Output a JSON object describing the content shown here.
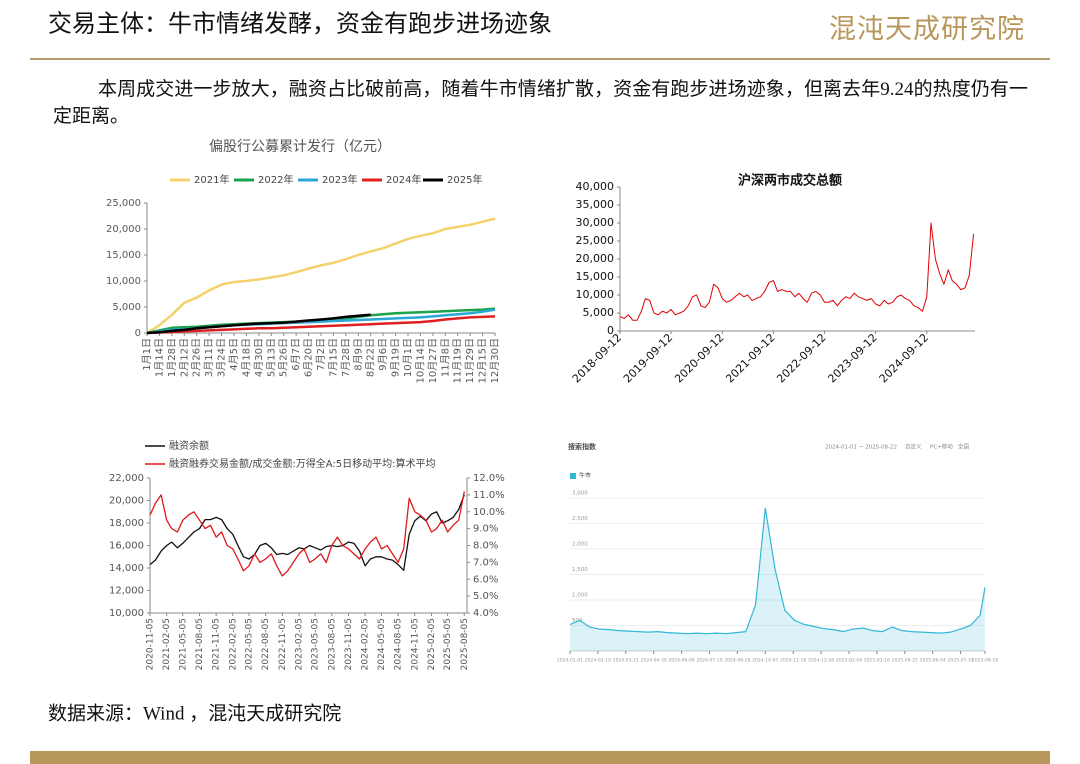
{
  "header": {
    "title": "交易主体：牛市情绪发酵，资金有跑步进场迹象",
    "logo": "混沌天成研究院"
  },
  "body_text": "本周成交进一步放大，融资占比破前高，随着牛市情绪扩散，资金有跑步进场迹象，但离去年9.24的热度仍有一定距离。",
  "source": "数据来源：Wind ，混沌天成研究院",
  "chart_data": [
    {
      "type": "line",
      "title": "偏股行公募累计发行（亿元）",
      "grid": false,
      "legend": true,
      "categories": [
        "1月1日",
        "1月14日",
        "1月28日",
        "2月12日",
        "2月26日",
        "3月11日",
        "3月24日",
        "4月5日",
        "4月18日",
        "4月30日",
        "5月13日",
        "5月26日",
        "6月7日",
        "6月20日",
        "7月2日",
        "7月15日",
        "7月28日",
        "8月9日",
        "8月22日",
        "9月6日",
        "9月19日",
        "10月1日",
        "10月14日",
        "10月27日",
        "11月8日",
        "11月19日",
        "11月29日",
        "12月15日",
        "12月30日"
      ],
      "ylim": [
        0,
        25000
      ],
      "yticks": [
        0,
        {
          "value": 5000,
          "label": "5,000"
        },
        {
          "value": 10000,
          "label": "10,000"
        },
        {
          "value": 15000,
          "label": "15,000"
        },
        {
          "value": 20000,
          "label": "20,000"
        },
        {
          "value": 25000,
          "label": "25,000"
        }
      ],
      "series": [
        {
          "name": "2021年",
          "color": "#f5d16b",
          "values": [
            0,
            1500,
            3500,
            5800,
            6800,
            8200,
            9300,
            9800,
            10000,
            10300,
            10700,
            11100,
            11700,
            12400,
            13000,
            13500,
            14200,
            15000,
            15700,
            16300,
            17200,
            18100,
            18700,
            19200,
            20000,
            20400,
            20800,
            21400,
            22000
          ]
        },
        {
          "name": "2022年",
          "color": "#1aa34a",
          "values": [
            0,
            500,
            1000,
            1100,
            1200,
            1400,
            1600,
            1700,
            1800,
            1900,
            2000,
            2100,
            2200,
            2400,
            2500,
            2600,
            2800,
            3100,
            3400,
            3600,
            3800,
            3900,
            4000,
            4100,
            4200,
            4300,
            4400,
            4500,
            4700
          ]
        },
        {
          "name": "2023年",
          "color": "#2aa7d6",
          "values": [
            0,
            300,
            600,
            700,
            900,
            1100,
            1300,
            1500,
            1600,
            1700,
            1800,
            1900,
            2000,
            2100,
            2200,
            2300,
            2400,
            2500,
            2600,
            2700,
            2800,
            2900,
            3000,
            3200,
            3400,
            3600,
            3800,
            4100,
            4500
          ]
        },
        {
          "name": "2024年",
          "color": "#e02020",
          "values": [
            0,
            100,
            200,
            300,
            400,
            500,
            600,
            700,
            800,
            900,
            900,
            1000,
            1100,
            1200,
            1300,
            1400,
            1500,
            1600,
            1700,
            1800,
            1900,
            2000,
            2100,
            2300,
            2600,
            2800,
            3000,
            3100,
            3200
          ]
        },
        {
          "name": "2025年",
          "color": "#000000",
          "values": [
            0,
            150,
            400,
            600,
            900,
            1100,
            1300,
            1500,
            1700,
            1800,
            1900,
            2000,
            2200,
            2400,
            2600,
            2800,
            3100,
            3300,
            3500,
            null,
            null,
            null,
            null,
            null,
            null,
            null,
            null,
            null,
            null
          ]
        }
      ]
    },
    {
      "type": "line",
      "title": "沪深两市成交总额",
      "grid": false,
      "legend": false,
      "x": [
        "2018-09-12",
        "2018-10-12",
        "2018-11-12",
        "2018-12-12",
        "2019-01-12",
        "2019-02-12",
        "2019-03-12",
        "2019-04-12",
        "2019-05-12",
        "2019-06-12",
        "2019-07-12",
        "2019-08-12",
        "2019-09-12",
        "2019-10-12",
        "2019-11-12",
        "2019-12-12",
        "2020-01-12",
        "2020-02-12",
        "2020-03-12",
        "2020-04-12",
        "2020-05-12",
        "2020-06-12",
        "2020-07-12",
        "2020-08-12",
        "2020-09-12",
        "2020-10-12",
        "2020-11-12",
        "2020-12-12",
        "2021-01-12",
        "2021-02-12",
        "2021-03-12",
        "2021-04-12",
        "2021-05-12",
        "2021-06-12",
        "2021-07-12",
        "2021-08-12",
        "2021-09-12",
        "2021-10-12",
        "2021-11-12",
        "2021-12-12",
        "2022-01-12",
        "2022-02-12",
        "2022-03-12",
        "2022-04-12",
        "2022-05-12",
        "2022-06-12",
        "2022-07-12",
        "2022-08-12",
        "2022-09-12",
        "2022-10-12",
        "2022-11-12",
        "2022-12-12",
        "2023-01-12",
        "2023-02-12",
        "2023-03-12",
        "2023-04-12",
        "2023-05-12",
        "2023-06-12",
        "2023-07-12",
        "2023-08-12",
        "2023-09-12",
        "2023-10-12",
        "2023-11-12",
        "2023-12-12",
        "2024-01-12",
        "2024-02-12",
        "2024-03-12",
        "2024-04-12",
        "2024-05-12",
        "2024-06-12",
        "2024-07-12",
        "2024-08-12",
        "2024-09-12",
        "2024-10-12",
        "2024-11-12",
        "2024-12-12",
        "2025-01-12",
        "2025-02-12",
        "2025-03-12",
        "2025-04-12",
        "2025-05-12",
        "2025-06-12",
        "2025-07-12",
        "2025-08-12"
      ],
      "xlim": [
        "2018-09-12",
        "2025-08-22"
      ],
      "xticks": [
        "2018-09-12",
        "2019-09-12",
        "2020-09-12",
        "2021-09-12",
        "2022-09-12",
        "2023-09-12",
        "2024-09-12"
      ],
      "ylim": [
        0,
        40000
      ],
      "yticks": [
        0,
        {
          "value": 5000,
          "label": "5,000"
        },
        {
          "value": 10000,
          "label": "10,000"
        },
        {
          "value": 15000,
          "label": "15,000"
        },
        {
          "value": 20000,
          "label": "20,000"
        },
        {
          "value": 25000,
          "label": "25,000"
        },
        {
          "value": 30000,
          "label": "30,000"
        },
        {
          "value": 35000,
          "label": "35,000"
        },
        {
          "value": 40000,
          "label": "40,000"
        }
      ],
      "series": [
        {
          "name": "沪深两市成交总额",
          "color": "#e00000",
          "values": [
            4000,
            3500,
            4500,
            3000,
            3000,
            5500,
            9000,
            8500,
            5000,
            4500,
            5500,
            5000,
            6000,
            4500,
            5000,
            5500,
            7000,
            9500,
            10000,
            7000,
            6500,
            8000,
            13000,
            12000,
            9000,
            8000,
            8500,
            9500,
            10500,
            9500,
            10000,
            8500,
            9000,
            9500,
            11000,
            13500,
            14000,
            11000,
            11500,
            11000,
            11000,
            9500,
            10500,
            9000,
            8000,
            10500,
            11000,
            10000,
            8000,
            8000,
            8500,
            7000,
            8500,
            9500,
            9000,
            10500,
            9500,
            9000,
            8500,
            9000,
            7500,
            7000,
            8500,
            7500,
            8000,
            9500,
            10000,
            9000,
            8500,
            7000,
            6500,
            5500,
            9500,
            30000,
            20000,
            16000,
            13000,
            17000,
            14000,
            13000,
            11500,
            12000,
            15500,
            27000
          ]
        }
      ]
    },
    {
      "type": "line",
      "grid": false,
      "legend": true,
      "x": [
        "2020-11-05",
        "2020-12-05",
        "2021-01-05",
        "2021-02-05",
        "2021-03-05",
        "2021-04-05",
        "2021-05-05",
        "2021-06-05",
        "2021-07-05",
        "2021-08-05",
        "2021-09-05",
        "2021-10-05",
        "2021-11-05",
        "2021-12-05",
        "2022-01-05",
        "2022-02-05",
        "2022-03-05",
        "2022-04-05",
        "2022-05-05",
        "2022-06-05",
        "2022-07-05",
        "2022-08-05",
        "2022-09-05",
        "2022-10-05",
        "2022-11-05",
        "2022-12-05",
        "2023-01-05",
        "2023-02-05",
        "2023-03-05",
        "2023-04-05",
        "2023-05-05",
        "2023-06-05",
        "2023-07-05",
        "2023-08-05",
        "2023-09-05",
        "2023-10-05",
        "2023-11-05",
        "2023-12-05",
        "2024-01-05",
        "2024-02-05",
        "2024-03-05",
        "2024-04-05",
        "2024-05-05",
        "2024-06-05",
        "2024-07-05",
        "2024-08-05",
        "2024-09-05",
        "2024-10-05",
        "2024-11-05",
        "2024-12-05",
        "2025-01-05",
        "2025-02-05",
        "2025-03-05",
        "2025-04-05",
        "2025-05-05",
        "2025-06-05",
        "2025-07-05",
        "2025-08-05"
      ],
      "xlim": [
        "2020-11-05",
        "2025-08-20"
      ],
      "xticks": [
        "2020-11-05",
        "2021-02-05",
        "2021-05-05",
        "2021-08-05",
        "2021-11-05",
        "2022-02-05",
        "2022-05-05",
        "2022-08-05",
        "2022-11-05",
        "2023-02-05",
        "2023-05-05",
        "2023-08-05",
        "2023-11-05",
        "2024-02-05",
        "2024-05-05",
        "2024-08-05",
        "2024-11-05",
        "2025-02-05",
        "2025-05-05",
        "2025-08-05"
      ],
      "ylim": [
        10000,
        22000
      ],
      "yticks": [
        {
          "value": 10000,
          "label": "10,000"
        },
        {
          "value": 12000,
          "label": "12,000"
        },
        {
          "value": 14000,
          "label": "14,000"
        },
        {
          "value": 16000,
          "label": "16,000"
        },
        {
          "value": 18000,
          "label": "18,000"
        },
        {
          "value": 20000,
          "label": "20,000"
        },
        {
          "value": 22000,
          "label": "22,000"
        }
      ],
      "y2lim": [
        4,
        12
      ],
      "y2ticks": [
        {
          "value": 4,
          "label": "4.0%"
        },
        {
          "value": 5,
          "label": "5.0%"
        },
        {
          "value": 6,
          "label": "6.0%"
        },
        {
          "value": 7,
          "label": "7.0%"
        },
        {
          "value": 8,
          "label": "8.0%"
        },
        {
          "value": 9,
          "label": "9.0%"
        },
        {
          "value": 10,
          "label": "10.0%"
        },
        {
          "value": 11,
          "label": "11.0%"
        },
        {
          "value": 12,
          "label": "12.0%"
        }
      ],
      "series": [
        {
          "name": "融资余额",
          "color": "#111111",
          "values": [
            14300,
            14700,
            15500,
            16000,
            16300,
            15800,
            16200,
            16700,
            17200,
            17500,
            18300,
            18300,
            18500,
            18300,
            17500,
            17000,
            16000,
            15000,
            14800,
            15200,
            16000,
            16200,
            15800,
            15200,
            15300,
            15200,
            15500,
            15800,
            15700,
            16000,
            15800,
            15600,
            15900,
            16000,
            15900,
            16000,
            16300,
            16200,
            15500,
            14200,
            14800,
            15000,
            15000,
            14800,
            14700,
            14300,
            13800,
            17000,
            18200,
            18600,
            18200,
            18800,
            19000,
            18000,
            18200,
            18500,
            19200,
            20500
          ]
        },
        {
          "name": "融资融券交易金额/成交金额:万得全A:5日移动平均:算术平均",
          "color": "#e0191b",
          "axis": "y2",
          "values": [
            9.8,
            10.5,
            11.0,
            9.5,
            9.0,
            8.8,
            9.5,
            9.8,
            10.0,
            9.5,
            9.0,
            9.2,
            8.5,
            8.8,
            8.0,
            7.8,
            7.2,
            6.5,
            6.8,
            7.5,
            7.0,
            7.2,
            7.5,
            6.8,
            6.2,
            6.5,
            7.0,
            7.5,
            7.8,
            7.0,
            7.2,
            7.5,
            7.0,
            8.0,
            8.5,
            8.0,
            7.8,
            7.5,
            7.2,
            7.8,
            8.2,
            8.5,
            7.8,
            8.0,
            7.5,
            7.0,
            7.8,
            10.8,
            10.0,
            9.8,
            9.5,
            8.8,
            9.0,
            9.5,
            8.8,
            9.2,
            9.5,
            11.2
          ]
        }
      ]
    },
    {
      "type": "area",
      "title": "搜索指数",
      "grid": true,
      "legend": true,
      "header_items": [
        "2024-01-01 ~ 2025-08-22",
        "自定义",
        "PC+移动",
        "全国"
      ],
      "x": [
        "2024-01-01",
        "2024-01-15",
        "2024-01-29",
        "2024-02-12",
        "2024-02-26",
        "2024-03-11",
        "2024-03-25",
        "2024-04-08",
        "2024-04-22",
        "2024-05-06",
        "2024-05-20",
        "2024-06-03",
        "2024-06-17",
        "2024-07-01",
        "2024-07-15",
        "2024-07-29",
        "2024-08-12",
        "2024-08-26",
        "2024-09-09",
        "2024-09-23",
        "2024-10-07",
        "2024-10-21",
        "2024-11-04",
        "2024-11-18",
        "2024-12-02",
        "2024-12-16",
        "2024-12-30",
        "2025-01-13",
        "2025-01-27",
        "2025-02-10",
        "2025-02-24",
        "2025-03-10",
        "2025-03-24",
        "2025-04-07",
        "2025-04-21",
        "2025-05-05",
        "2025-05-19",
        "2025-06-02",
        "2025-06-16",
        "2025-06-30",
        "2025-07-14",
        "2025-07-28",
        "2025-08-11",
        "2025-08-18"
      ],
      "xlim": [
        "2024-01-01",
        "2025-08-18"
      ],
      "xticks": [
        "2024-01-01",
        "2024-02-10",
        "2024-03-21",
        "2024-04-30",
        "2024-06-09",
        "2024-07-19",
        "2024-08-28",
        "2024-10-07",
        "2024-11-16",
        "2024-12-26",
        "2025-02-04",
        "2025-03-16",
        "2025-04-25",
        "2025-06-04",
        "2025-07-14",
        "2025-08-18"
      ],
      "ylim": [
        0,
        3000
      ],
      "yticks": [
        {
          "value": 500,
          "label": "500"
        },
        {
          "value": 1000,
          "label": "1,000"
        },
        {
          "value": 1500,
          "label": "1,500"
        },
        {
          "value": 2000,
          "label": "2,000"
        },
        {
          "value": 2500,
          "label": "2,500"
        },
        {
          "value": 3000,
          "label": "3,000"
        }
      ],
      "series": [
        {
          "name": "牛市",
          "color": "#34b6d7",
          "values": [
            520,
            600,
            470,
            430,
            420,
            400,
            390,
            380,
            370,
            380,
            360,
            350,
            340,
            350,
            340,
            350,
            340,
            360,
            380,
            900,
            2800,
            1600,
            800,
            600,
            520,
            480,
            440,
            420,
            380,
            430,
            450,
            400,
            380,
            470,
            400,
            380,
            370,
            360,
            350,
            370,
            430,
            500,
            700,
            1250
          ]
        }
      ]
    }
  ]
}
